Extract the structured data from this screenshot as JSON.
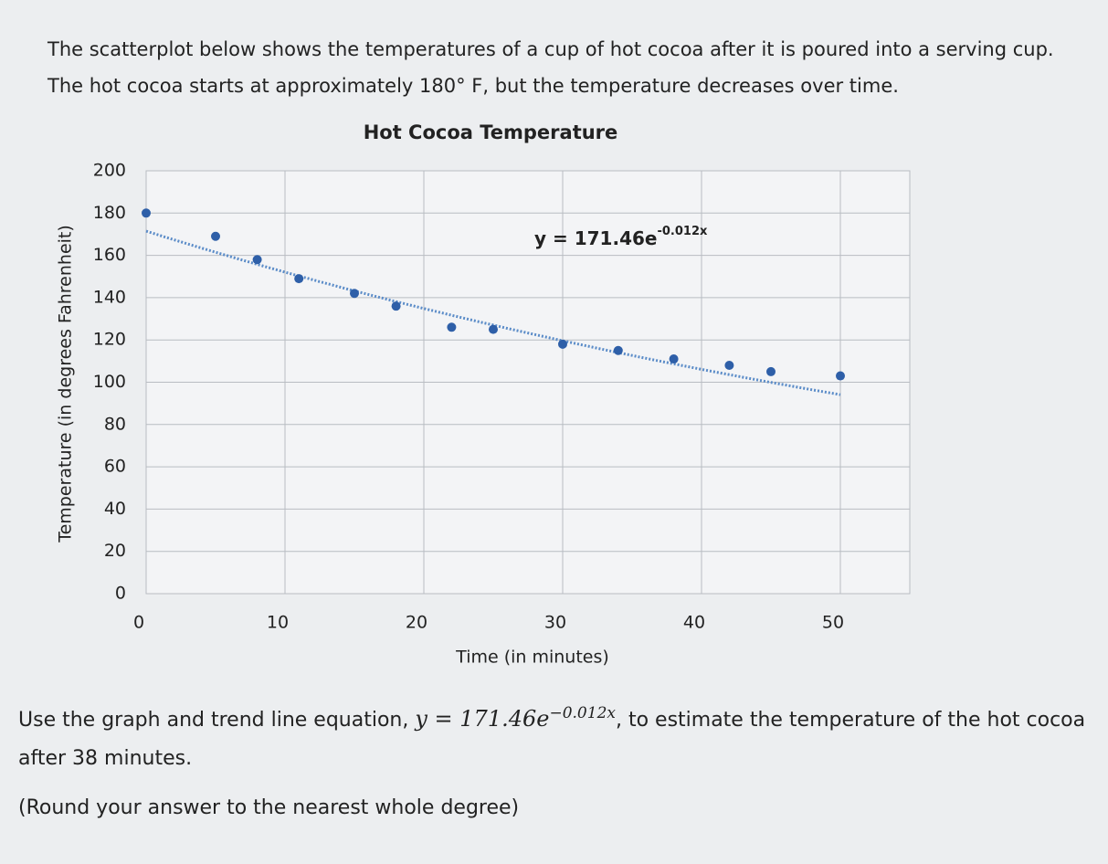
{
  "intro": "The scatterplot below shows the temperatures of a cup of hot cocoa after it is poured into a serving cup. The hot cocoa starts at approximately 180° F, but the temperature decreases over time.",
  "question": {
    "before": "Use the graph and trend line equation,",
    "equation_base": "y = 171.46e",
    "equation_exponent": "−0.012x",
    "after": ", to estimate the temperature of the hot cocoa after 38 minutes.",
    "note": "(Round your answer to the nearest whole degree)"
  },
  "chart_data": {
    "type": "scatter",
    "title": "Hot Cocoa Temperature",
    "x_label": "Time (in minutes)",
    "y_label": "Temperature (in degrees Fahrenheit)",
    "series": [
      {
        "name": "Temperature",
        "color": "#2e5fa8",
        "x": [
          0,
          5,
          8,
          11,
          15,
          18,
          22,
          25,
          30,
          34,
          38,
          42,
          45,
          50
        ],
        "values": [
          180,
          169,
          158,
          149,
          142,
          136,
          126,
          125,
          118,
          115,
          111,
          108,
          105,
          103
        ]
      }
    ],
    "trendline": {
      "label": "y = 171.46e",
      "exponent_label": "-0.012x",
      "a": 171.46,
      "k": -0.012,
      "color": "#5b8cc8"
    },
    "xlim": [
      0,
      55
    ],
    "ylim": [
      0,
      200
    ],
    "xticks": [
      0,
      10,
      20,
      30,
      40,
      50
    ],
    "yticks": [
      0,
      20,
      40,
      60,
      80,
      100,
      120,
      140,
      160,
      180,
      200
    ],
    "grid": true
  }
}
